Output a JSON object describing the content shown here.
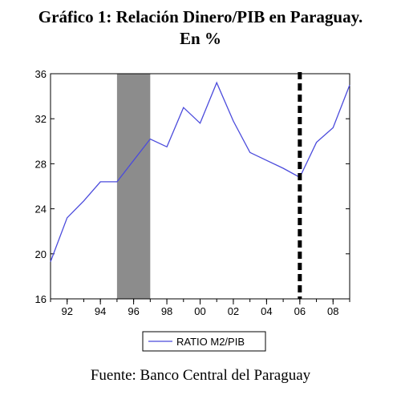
{
  "page": {
    "title_line1": "Gráfico 1: Relación Dinero/PIB en Paraguay.",
    "title_line2": "En %",
    "source": "Fuente: Banco Central del Paraguay"
  },
  "chart_data": {
    "type": "line",
    "title": "Gráfico 1: Relación Dinero/PIB en Paraguay. En %",
    "xlabel": "",
    "ylabel": "",
    "xlim": [
      1991,
      2009
    ],
    "ylim": [
      16,
      36
    ],
    "x_ticks": [
      1992,
      1994,
      1996,
      1998,
      2000,
      2002,
      2004,
      2006,
      2008
    ],
    "x_tick_labels": [
      "92",
      "94",
      "96",
      "98",
      "00",
      "02",
      "04",
      "06",
      "08"
    ],
    "y_ticks": [
      16,
      20,
      24,
      28,
      32,
      36
    ],
    "y_tick_labels": [
      "16",
      "20",
      "24",
      "28",
      "32",
      "36"
    ],
    "grid": false,
    "legend_position": "bottom-left",
    "series": [
      {
        "name": "RATIO M2/PIB",
        "color": "#4b4bdc",
        "x": [
          1991,
          1992,
          1993,
          1994,
          1995,
          1996,
          1997,
          1998,
          1999,
          2000,
          2001,
          2002,
          2003,
          2004,
          2005,
          2006,
          2007,
          2008,
          2009
        ],
        "values": [
          19.3,
          23.2,
          24.7,
          26.4,
          26.4,
          28.3,
          30.2,
          29.5,
          33.0,
          31.6,
          35.2,
          31.8,
          29.0,
          28.3,
          27.6,
          26.8,
          29.9,
          31.2,
          35.0
        ]
      }
    ],
    "shaded_band": {
      "x_start": 1995,
      "x_end": 1997,
      "color": "#8c8c8c"
    },
    "vertical_marker": {
      "x": 2006,
      "style": "dashed",
      "color": "#000000"
    }
  }
}
